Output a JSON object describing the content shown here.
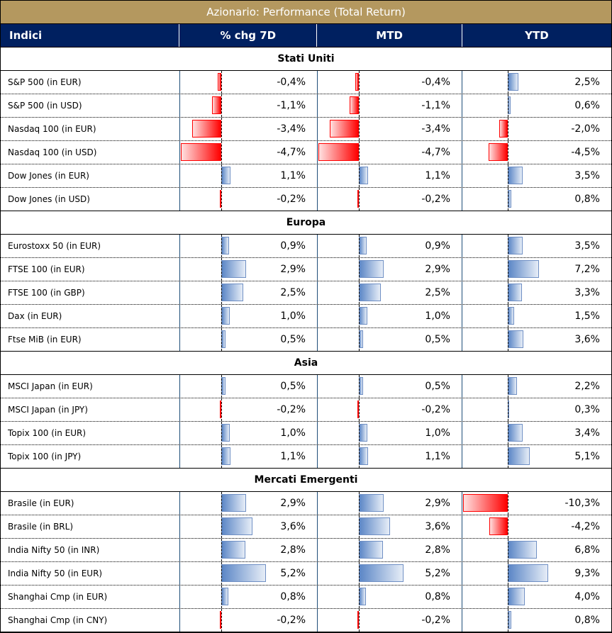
{
  "title": "Azionario: Performance (Total Return)",
  "headers": [
    "Indici",
    "% chg 7D",
    "MTD",
    "YTD"
  ],
  "colors": {
    "title_bg": "#b4985f",
    "header_bg": "#002060",
    "positive": "#5b86c6",
    "negative": "#ff0000"
  },
  "groups": [
    {
      "name": "Stati Uniti",
      "rows": [
        {
          "name": "S&P 500 (in EUR)",
          "d7": -0.4,
          "mtd": -0.4,
          "ytd": 2.5,
          "t": [
            "-0,4%",
            "-0,4%",
            "2,5%"
          ]
        },
        {
          "name": "S&P 500 (in USD)",
          "d7": -1.1,
          "mtd": -1.1,
          "ytd": 0.6,
          "t": [
            "-1,1%",
            "-1,1%",
            "0,6%"
          ]
        },
        {
          "name": "Nasdaq 100 (in EUR)",
          "d7": -3.4,
          "mtd": -3.4,
          "ytd": -2.0,
          "t": [
            "-3,4%",
            "-3,4%",
            "-2,0%"
          ]
        },
        {
          "name": "Nasdaq 100 (in USD)",
          "d7": -4.7,
          "mtd": -4.7,
          "ytd": -4.5,
          "t": [
            "-4,7%",
            "-4,7%",
            "-4,5%"
          ]
        },
        {
          "name": "Dow Jones (in EUR)",
          "d7": 1.1,
          "mtd": 1.1,
          "ytd": 3.5,
          "t": [
            "1,1%",
            "1,1%",
            "3,5%"
          ]
        },
        {
          "name": "Dow Jones (in USD)",
          "d7": -0.2,
          "mtd": -0.2,
          "ytd": 0.8,
          "t": [
            "-0,2%",
            "-0,2%",
            "0,8%"
          ]
        }
      ]
    },
    {
      "name": "Europa",
      "rows": [
        {
          "name": "Eurostoxx 50 (in EUR)",
          "d7": 0.9,
          "mtd": 0.9,
          "ytd": 3.5,
          "t": [
            "0,9%",
            "0,9%",
            "3,5%"
          ]
        },
        {
          "name": "FTSE 100 (in EUR)",
          "d7": 2.9,
          "mtd": 2.9,
          "ytd": 7.2,
          "t": [
            "2,9%",
            "2,9%",
            "7,2%"
          ]
        },
        {
          "name": "FTSE 100 (in GBP)",
          "d7": 2.5,
          "mtd": 2.5,
          "ytd": 3.3,
          "t": [
            "2,5%",
            "2,5%",
            "3,3%"
          ]
        },
        {
          "name": "Dax (in EUR)",
          "d7": 1.0,
          "mtd": 1.0,
          "ytd": 1.5,
          "t": [
            "1,0%",
            "1,0%",
            "1,5%"
          ]
        },
        {
          "name": "Ftse MiB (in EUR)",
          "d7": 0.5,
          "mtd": 0.5,
          "ytd": 3.6,
          "t": [
            "0,5%",
            "0,5%",
            "3,6%"
          ]
        }
      ]
    },
    {
      "name": "Asia",
      "rows": [
        {
          "name": "MSCI Japan (in EUR)",
          "d7": 0.5,
          "mtd": 0.5,
          "ytd": 2.2,
          "t": [
            "0,5%",
            "0,5%",
            "2,2%"
          ]
        },
        {
          "name": "MSCI Japan (in JPY)",
          "d7": -0.2,
          "mtd": -0.2,
          "ytd": 0.3,
          "t": [
            "-0,2%",
            "-0,2%",
            "0,3%"
          ]
        },
        {
          "name": "Topix 100 (in EUR)",
          "d7": 1.0,
          "mtd": 1.0,
          "ytd": 3.4,
          "t": [
            "1,0%",
            "1,0%",
            "3,4%"
          ]
        },
        {
          "name": "Topix 100 (in JPY)",
          "d7": 1.1,
          "mtd": 1.1,
          "ytd": 5.1,
          "t": [
            "1,1%",
            "1,1%",
            "5,1%"
          ]
        }
      ]
    },
    {
      "name": "Mercati Emergenti",
      "rows": [
        {
          "name": "Brasile (in EUR)",
          "d7": 2.9,
          "mtd": 2.9,
          "ytd": -10.3,
          "t": [
            "2,9%",
            "2,9%",
            "-10,3%"
          ]
        },
        {
          "name": "Brasile (in BRL)",
          "d7": 3.6,
          "mtd": 3.6,
          "ytd": -4.2,
          "t": [
            "3,6%",
            "3,6%",
            "-4,2%"
          ]
        },
        {
          "name": "India Nifty 50 (in INR)",
          "d7": 2.8,
          "mtd": 2.8,
          "ytd": 6.8,
          "t": [
            "2,8%",
            "2,8%",
            "6,8%"
          ]
        },
        {
          "name": "India Nifty 50 (in EUR)",
          "d7": 5.2,
          "mtd": 5.2,
          "ytd": 9.3,
          "t": [
            "5,2%",
            "5,2%",
            "9,3%"
          ]
        },
        {
          "name": "Shanghai Cmp (in EUR)",
          "d7": 0.8,
          "mtd": 0.8,
          "ytd": 4.0,
          "t": [
            "0,8%",
            "0,8%",
            "4,0%"
          ]
        },
        {
          "name": "Shanghai Cmp (in CNY)",
          "d7": -0.2,
          "mtd": -0.2,
          "ytd": 0.8,
          "t": [
            "-0,2%",
            "-0,2%",
            "0,8%"
          ]
        }
      ]
    }
  ]
}
